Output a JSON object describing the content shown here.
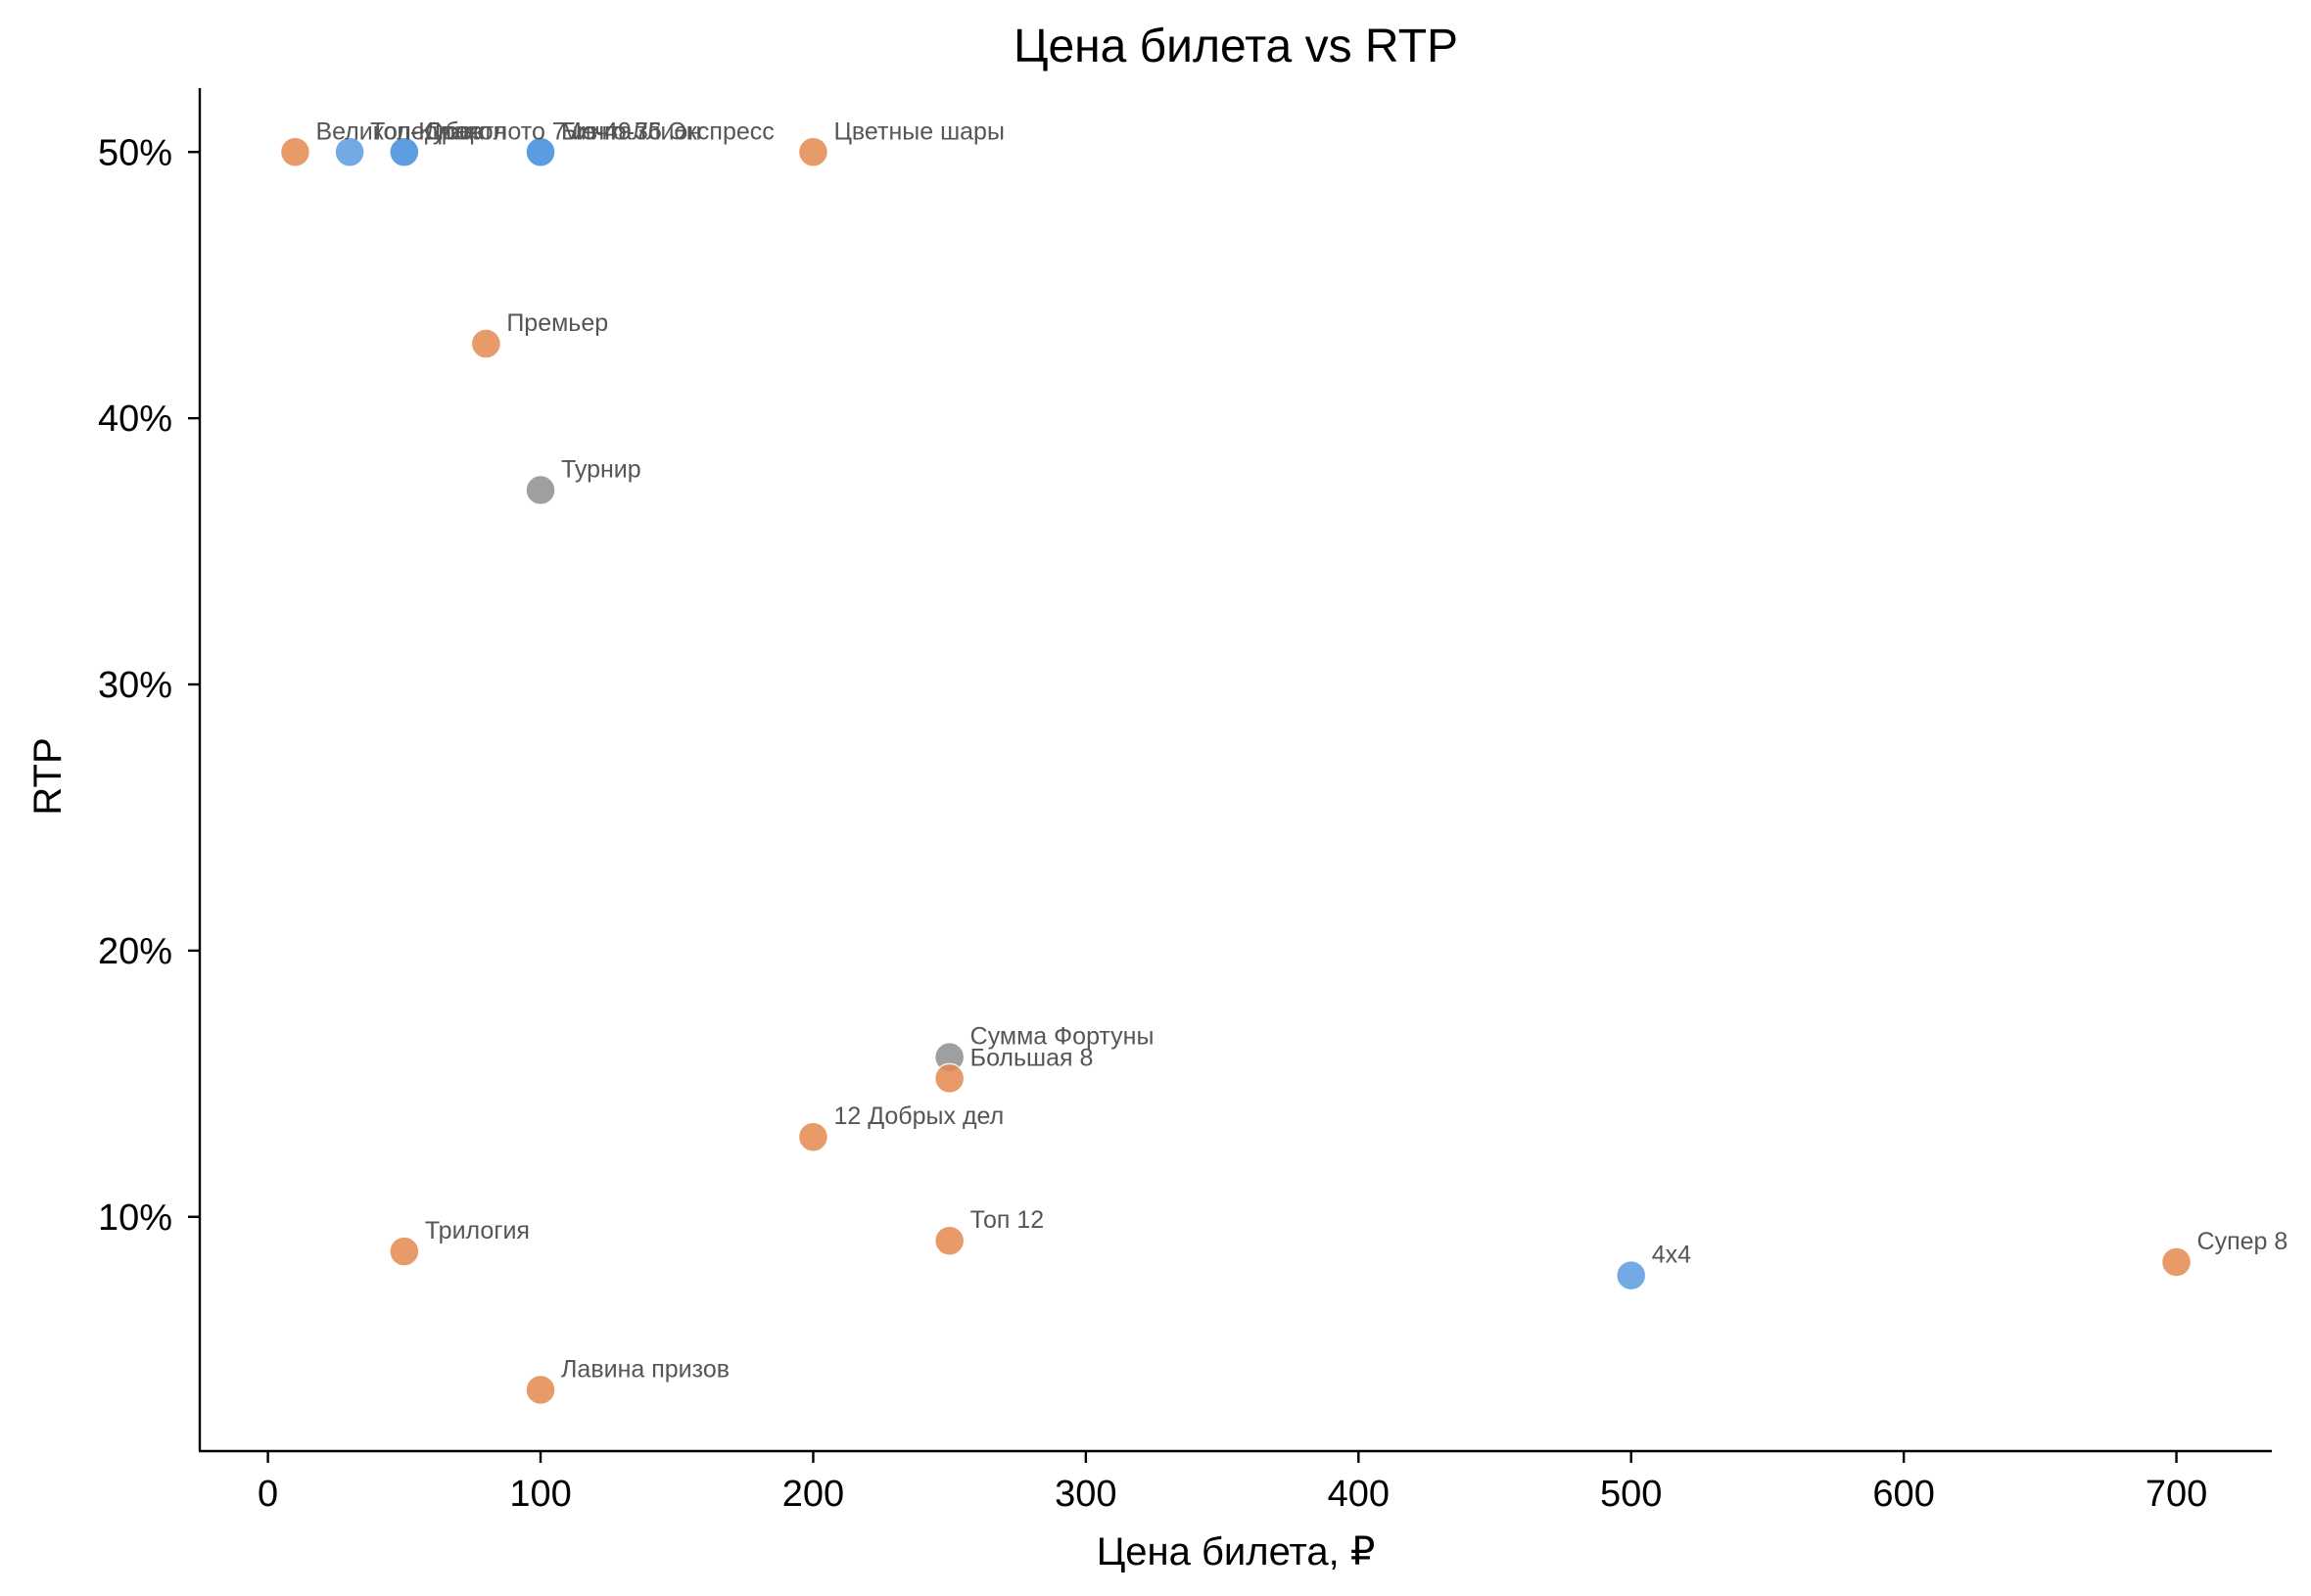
{
  "chart_data": {
    "type": "scatter",
    "title": "Цена билета vs RTP",
    "xlabel": "Цена билета, ₽",
    "ylabel": "RTP",
    "xlim": [
      -25,
      735
    ],
    "ylim": [
      1.2,
      52.4
    ],
    "xticks": [
      0,
      100,
      200,
      300,
      400,
      500,
      600,
      700
    ],
    "xtick_labels": [
      "0",
      "100",
      "200",
      "300",
      "400",
      "500",
      "600",
      "700"
    ],
    "yticks": [
      10,
      20,
      30,
      40,
      50
    ],
    "ytick_labels": [
      "10%",
      "20%",
      "30%",
      "40%",
      "50%"
    ],
    "grid": false,
    "colors": {
      "orange": "#e58a4f",
      "blue": "#5b9be0",
      "gray": "#8f8f8f"
    },
    "points": [
      {
        "label": "Великолепная",
        "x": 10,
        "y": 50,
        "color": "orange"
      },
      {
        "label": "Топ-Кубок",
        "x": 30,
        "y": 50,
        "color": "blue"
      },
      {
        "label": "Спортлото 7 из 49",
        "x": 50,
        "y": 50,
        "color": "blue"
      },
      {
        "label": "Дракон",
        "x": 50,
        "y": 50,
        "color": "blue"
      },
      {
        "label": "Мечталлион",
        "x": 100,
        "y": 50,
        "color": "blue"
      },
      {
        "label": "Бинго-75",
        "x": 100,
        "y": 50,
        "color": "blue"
      },
      {
        "label": "Бинго-36 Экспресс",
        "x": 100,
        "y": 50,
        "color": "blue"
      },
      {
        "label": "Цветные шары",
        "x": 200,
        "y": 50,
        "color": "orange"
      },
      {
        "label": "Премьер",
        "x": 80,
        "y": 42.8,
        "color": "orange"
      },
      {
        "label": "Турнир",
        "x": 100,
        "y": 37.3,
        "color": "gray"
      },
      {
        "label": "Сумма Фортуны",
        "x": 250,
        "y": 16.0,
        "color": "gray"
      },
      {
        "label": "Большая 8",
        "x": 250,
        "y": 15.2,
        "color": "orange"
      },
      {
        "label": "12 Добрых дел",
        "x": 200,
        "y": 13.0,
        "color": "orange"
      },
      {
        "label": "Трилогия",
        "x": 50,
        "y": 8.7,
        "color": "orange"
      },
      {
        "label": "Топ 12",
        "x": 250,
        "y": 9.1,
        "color": "orange"
      },
      {
        "label": "4x4",
        "x": 500,
        "y": 7.8,
        "color": "blue"
      },
      {
        "label": "Супер 8",
        "x": 700,
        "y": 8.3,
        "color": "orange"
      },
      {
        "label": "Лавина призов",
        "x": 100,
        "y": 3.5,
        "color": "orange"
      }
    ]
  }
}
